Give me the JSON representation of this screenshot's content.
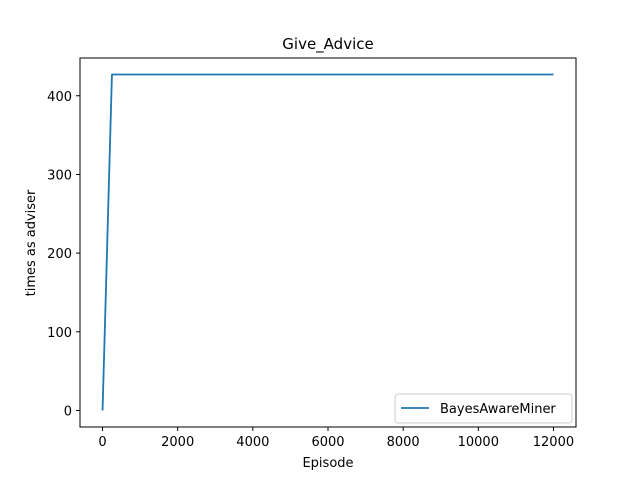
{
  "chart_data": {
    "type": "line",
    "title": "Give_Advice",
    "xlabel": "Episode",
    "ylabel": "times as adviser",
    "xlim": [
      -600,
      12600
    ],
    "ylim": [
      -21,
      448
    ],
    "xticks": [
      0,
      2000,
      4000,
      6000,
      8000,
      10000,
      12000
    ],
    "yticks": [
      0,
      100,
      200,
      300,
      400
    ],
    "grid": false,
    "legend_position": "lower-right",
    "series": [
      {
        "name": "BayesAwareMiner",
        "color": "#1f77b4",
        "x": [
          0,
          100,
          250,
          12000
        ],
        "y": [
          0,
          170,
          427,
          427
        ]
      }
    ]
  }
}
